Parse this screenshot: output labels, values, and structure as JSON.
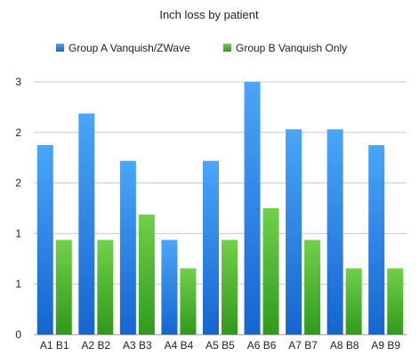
{
  "chart_data": {
    "type": "bar",
    "title": "Inch loss by patient",
    "xlabel": "",
    "ylabel": "",
    "categories": [
      "A1 B1",
      "A2 B2",
      "A3 B3",
      "A4 B4",
      "A5 B5",
      "A6 B6",
      "A7 B7",
      "A8 B8",
      "A9 B9"
    ],
    "series": [
      {
        "name": "Group A Vanquish/ZWave",
        "values": [
          3.0,
          3.5,
          2.75,
          1.5,
          2.75,
          4.0,
          3.25,
          3.25,
          3.0
        ],
        "color": "#2f8ae8"
      },
      {
        "name": "Group B Vanquish Only",
        "values": [
          1.5,
          1.5,
          1.9,
          1.05,
          1.5,
          2.0,
          1.5,
          1.05,
          1.05
        ],
        "color": "#4fb42f"
      }
    ],
    "ylim": [
      0,
      4
    ],
    "y_tick_labels": [
      "0",
      "1",
      "1",
      "2",
      "2",
      "3"
    ],
    "grid": true,
    "legend_position": "top-center"
  }
}
